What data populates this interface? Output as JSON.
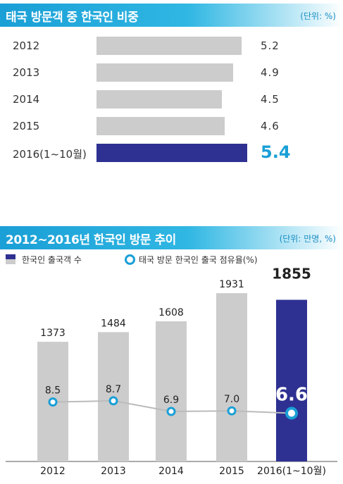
{
  "chart_data": [
    {
      "type": "bar",
      "orientation": "horizontal",
      "title": "태국 방문객 중 한국인 비중",
      "unit": "(단위: %)",
      "categories": [
        "2012",
        "2013",
        "2014",
        "2015",
        "2016(1~10월)"
      ],
      "values": [
        5.2,
        4.9,
        4.5,
        4.6,
        5.4
      ],
      "value_labels": [
        "5.2",
        "4.9",
        "4.5",
        "4.6",
        "5.4"
      ],
      "highlight_index": 4,
      "colors": {
        "normal": "#cccccc",
        "highlight": "#2e3192",
        "highlight_label": "#1a9fd6"
      }
    },
    {
      "type": "bar",
      "title": "2012~2016년 한국인 방문 추이",
      "unit": "(단위: 만명, %)",
      "categories": [
        "2012",
        "2013",
        "2014",
        "2015",
        "2016(1~10월)"
      ],
      "series": [
        {
          "name": "한국인 출국객 수",
          "type": "bar",
          "values": [
            1373,
            1484,
            1608,
            1931,
            1855
          ],
          "labels": [
            "1373",
            "1484",
            "1608",
            "1931",
            "1855"
          ]
        },
        {
          "name": "태국 방문 한국인 출국 점유율(%)",
          "type": "line",
          "values": [
            8.5,
            8.7,
            6.9,
            7.0,
            6.6
          ],
          "labels": [
            "8.5",
            "8.7",
            "6.9",
            "7.0",
            "6.6"
          ]
        }
      ],
      "highlight_index": 4,
      "colors": {
        "bar": "#cccccc",
        "highlight": "#2e3192",
        "line": "#bbbbbb",
        "marker": "#1a9fd6"
      }
    }
  ]
}
